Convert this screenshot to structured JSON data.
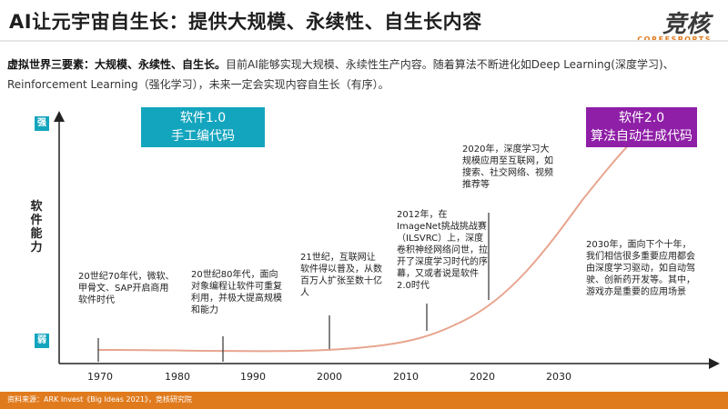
{
  "header": {
    "title": "AI让元宇宙自生长：提供大规模、永续性、自生长内容",
    "logo_main": "竞核",
    "logo_sub": "COREESPORTS"
  },
  "intro": {
    "lead": "虚拟世界三要素：大规模、永续性、自生长。",
    "body": "目前AI能够实现大规模、永续性生产内容。随着算法不断进化如Deep Learning(深度学习)、Reinforcement Learning（强化学习），未来一定会实现内容自生长（有序）。"
  },
  "axis": {
    "y_label": "软件能力",
    "strong": "强",
    "weak": "弱",
    "x_ticks": [
      "1970",
      "1980",
      "1990",
      "2000",
      "2010",
      "2020",
      "2030"
    ]
  },
  "boxes": {
    "software1": {
      "line1": "软件1.0",
      "line2": "手工编代码"
    },
    "software2": {
      "line1": "软件2.0",
      "line2": "算法自动生成代码"
    }
  },
  "milestones": [
    {
      "year": 1970,
      "text": "20世纪70年代，微软、甲骨文、SAP开启商用软件时代"
    },
    {
      "year": 1986,
      "text": "20世纪80年代，面向对象编程让软件可重复利用，并极大提高规模和能力"
    },
    {
      "year": 2000,
      "text": "21世纪，互联网让软件得以普及，从数百万人扩张至数十亿人"
    },
    {
      "year": 2012,
      "text": "2012年，在ImageNet挑战挑战赛（ILSVRC）上，深度卷积神经网络问世，拉开了深度学习时代的序幕，又或者说是软件2.0时代"
    },
    {
      "year": 2020,
      "text": "2020年，深度学习大规模应用至互联网，如搜索、社交网络、视频推荐等"
    },
    {
      "year": 2030,
      "text": "2030年，面向下个十年，我们相信很多重要应用都会由深度学习驱动，如自动驾驶、创新药开发等。其中，游戏亦是重要的应用场景"
    }
  ],
  "colors": {
    "accent_teal": "#14a5be",
    "accent_purple": "#8f1fa7",
    "curve": "#e8a58f",
    "source_bar": "#e07b1d"
  },
  "source": "资料来源：ARK Invest《Big Ideas 2021》，竞核研究院"
}
